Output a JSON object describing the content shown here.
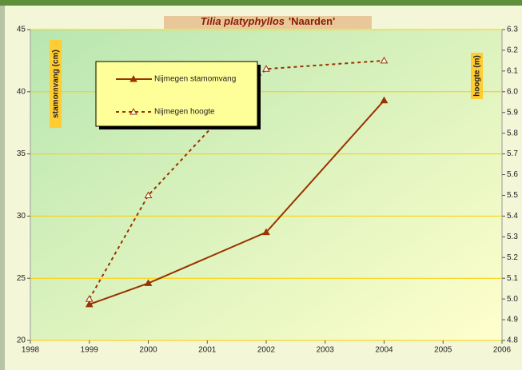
{
  "chart_data": {
    "type": "line",
    "title": {
      "species": "Tilia platyphyllos",
      "cultivar": "'Naarden'"
    },
    "ylabel": "stamomvang (cm)",
    "y2label": "hoogte (m)",
    "x": [
      1999,
      2000,
      2002,
      2004
    ],
    "series": [
      {
        "name": "Nijmegen stamomvang",
        "color": "#993300",
        "line_style": "solid",
        "marker_fill": "filled",
        "values": [
          22.9,
          24.6,
          28.7,
          39.3
        ]
      },
      {
        "name": "Nijmegen hoogte",
        "color": "#993300",
        "line_style": "dashed",
        "marker_fill": "open",
        "axis": "y2",
        "values": [
          5.0,
          5.5,
          6.11,
          6.15
        ]
      }
    ],
    "xlim": [
      1998,
      2006
    ],
    "xticks": [
      1998,
      1999,
      2000,
      2001,
      2002,
      2003,
      2004,
      2005,
      2006
    ],
    "ylim": [
      20,
      45
    ],
    "yticks": [
      20,
      25,
      30,
      35,
      40,
      45
    ],
    "y2lim": [
      4.8,
      6.3
    ],
    "y2ticks": [
      4.8,
      4.9,
      {
        "value": 5,
        "label": "5.0"
      },
      5.1,
      5.2,
      5.3,
      5.4,
      5.5,
      5.6,
      5.7,
      5.8,
      5.9,
      {
        "value": 6,
        "label": "6.0"
      },
      6.1,
      6.2,
      6.3
    ],
    "grid": true
  }
}
